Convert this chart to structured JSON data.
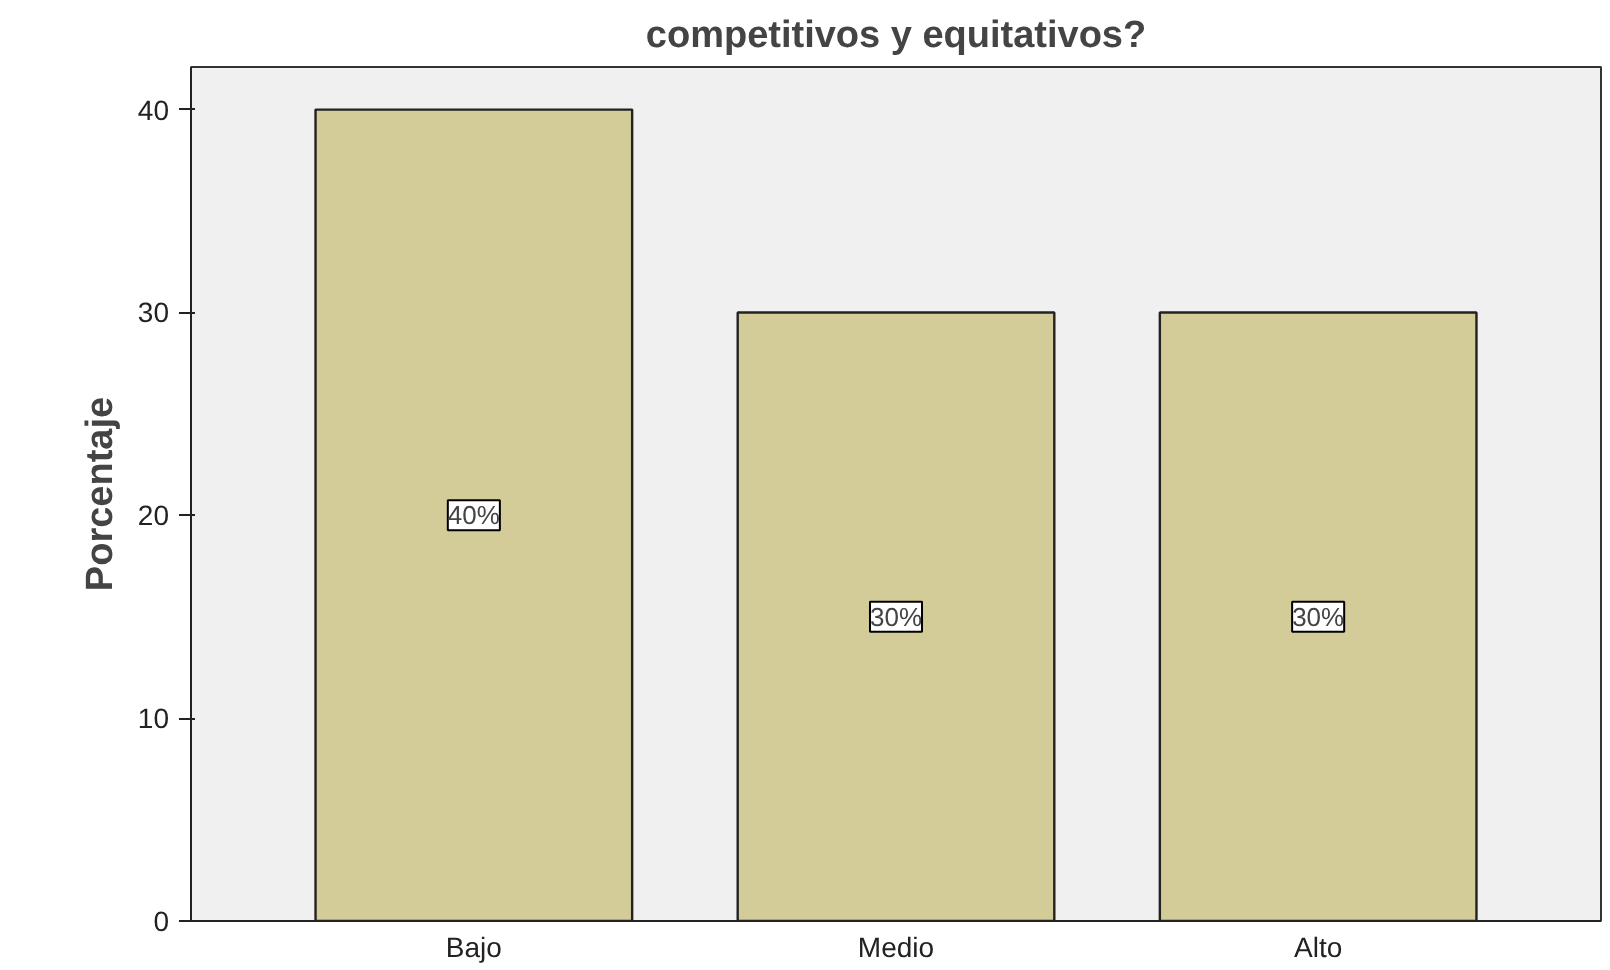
{
  "chart_data": {
    "type": "bar",
    "title": "competitivos y equitativos?",
    "ylabel": "Porcentaje",
    "categories": [
      "Bajo",
      "Medio",
      "Alto"
    ],
    "values": [
      40,
      30,
      30
    ],
    "color": "#d3cc98",
    "value_labels": [
      "40%",
      "30%",
      "30%"
    ],
    "ylim": [
      0,
      42.1
    ],
    "yticks": [
      0,
      10,
      20,
      30,
      40
    ],
    "grid": false
  }
}
